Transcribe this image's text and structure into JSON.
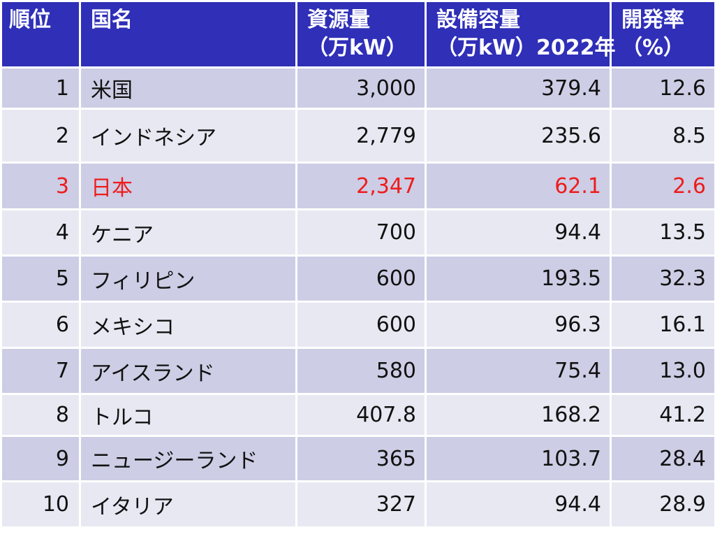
{
  "header": {
    "rank": "順位",
    "country": "国名",
    "resource_line1": "資源量",
    "resource_line2": "（万kW）",
    "capacity_line1": "設備容量",
    "capacity_line2": "（万kW）2022年",
    "rate_line1": "開発率",
    "rate_line2": "（%）"
  },
  "rows": [
    {
      "rank": "1",
      "country": "米国",
      "resource": "3,000",
      "capacity": "379.4",
      "rate": "12.6"
    },
    {
      "rank": "2",
      "country": "インドネシア",
      "resource": "2,779",
      "capacity": "235.6",
      "rate": "8.5"
    },
    {
      "rank": "3",
      "country": "日本",
      "resource": "2,347",
      "capacity": "62.1",
      "rate": "2.6"
    },
    {
      "rank": "4",
      "country": "ケニア",
      "resource": "700",
      "capacity": "94.4",
      "rate": "13.5"
    },
    {
      "rank": "5",
      "country": "フィリピン",
      "resource": "600",
      "capacity": "193.5",
      "rate": "32.3"
    },
    {
      "rank": "6",
      "country": "メキシコ",
      "resource": "600",
      "capacity": "96.3",
      "rate": "16.1"
    },
    {
      "rank": "7",
      "country": "アイスランド",
      "resource": "580",
      "capacity": "75.4",
      "rate": "13.0"
    },
    {
      "rank": "8",
      "country": "トルコ",
      "resource": "407.8",
      "capacity": "168.2",
      "rate": "41.2"
    },
    {
      "rank": "9",
      "country": "ニュージーランド",
      "resource": "365",
      "capacity": "103.7",
      "rate": "28.4"
    },
    {
      "rank": "10",
      "country": "イタリア",
      "resource": "327",
      "capacity": "94.4",
      "rate": "28.9"
    }
  ],
  "colors": {
    "header_bg": "#2f2fb8",
    "row_odd": "#cdcde5",
    "row_even": "#e8e8f3",
    "highlight_text": "#ee1c1c"
  }
}
